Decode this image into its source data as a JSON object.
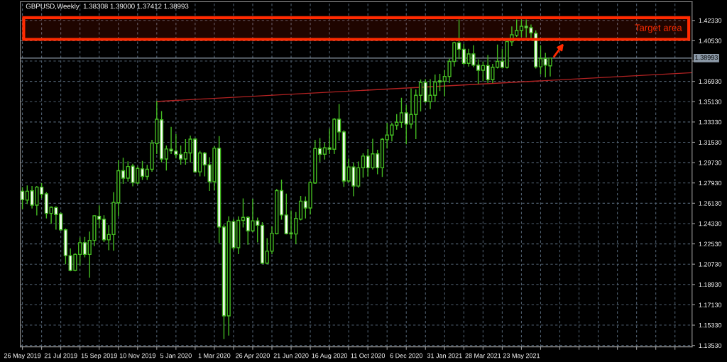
{
  "chart_data": {
    "type": "candlestick",
    "title": "GBPUSD,Weekly  1.38308 1.39000 1.37412 1.38993",
    "color": "#44bb22",
    "x": [
      "2019-05-26",
      "2019-06-02",
      "2019-06-09",
      "2019-06-16",
      "2019-06-23",
      "2019-06-30",
      "2019-07-07",
      "2019-07-14",
      "2019-07-21",
      "2019-07-28",
      "2019-08-04",
      "2019-08-11",
      "2019-08-18",
      "2019-08-25",
      "2019-09-01",
      "2019-09-08",
      "2019-09-15",
      "2019-09-22",
      "2019-09-29",
      "2019-10-06",
      "2019-10-13",
      "2019-10-20",
      "2019-10-27",
      "2019-11-03",
      "2019-11-10",
      "2019-11-17",
      "2019-11-24",
      "2019-12-01",
      "2019-12-08",
      "2019-12-15",
      "2019-12-22",
      "2019-12-29",
      "2020-01-05",
      "2020-01-12",
      "2020-01-19",
      "2020-01-26",
      "2020-02-02",
      "2020-02-09",
      "2020-02-16",
      "2020-02-23",
      "2020-03-01",
      "2020-03-08",
      "2020-03-15",
      "2020-03-22",
      "2020-03-29",
      "2020-04-05",
      "2020-04-12",
      "2020-04-19",
      "2020-04-26",
      "2020-05-03",
      "2020-05-10",
      "2020-05-17",
      "2020-05-24",
      "2020-05-31",
      "2020-06-07",
      "2020-06-14",
      "2020-06-21",
      "2020-06-28",
      "2020-07-05",
      "2020-07-12",
      "2020-07-19",
      "2020-07-26",
      "2020-08-02",
      "2020-08-09",
      "2020-08-16",
      "2020-08-23",
      "2020-08-30",
      "2020-09-06",
      "2020-09-13",
      "2020-09-20",
      "2020-09-27",
      "2020-10-04",
      "2020-10-11",
      "2020-10-18",
      "2020-10-25",
      "2020-11-01",
      "2020-11-08",
      "2020-11-15",
      "2020-11-22",
      "2020-11-29",
      "2020-12-06",
      "2020-12-13",
      "2020-12-20",
      "2020-12-27",
      "2021-01-03",
      "2021-01-10",
      "2021-01-17",
      "2021-01-24",
      "2021-01-31",
      "2021-02-07",
      "2021-02-14",
      "2021-02-21",
      "2021-02-28",
      "2021-03-07",
      "2021-03-14",
      "2021-03-21",
      "2021-03-28",
      "2021-04-04",
      "2021-04-11",
      "2021-04-18",
      "2021-04-25",
      "2021-05-02",
      "2021-05-09",
      "2021-05-16",
      "2021-05-23",
      "2021-05-30",
      "2021-06-06",
      "2021-06-13",
      "2021-06-20",
      "2021-06-27",
      "2021-07-04"
    ],
    "ohlc": [
      [
        1.272,
        1.2751,
        1.2565,
        1.2644
      ],
      [
        1.2641,
        1.2766,
        1.261,
        1.272
      ],
      [
        1.2724,
        1.2762,
        1.2571,
        1.2596
      ],
      [
        1.2596,
        1.2762,
        1.2509,
        1.2756
      ],
      [
        1.2756,
        1.2787,
        1.2662,
        1.2693
      ],
      [
        1.2697,
        1.2706,
        1.2482,
        1.2523
      ],
      [
        1.2523,
        1.2581,
        1.2436,
        1.2577
      ],
      [
        1.2575,
        1.2581,
        1.2384,
        1.2513
      ],
      [
        1.2519,
        1.2527,
        1.2374,
        1.2378
      ],
      [
        1.2378,
        1.2384,
        1.2077,
        1.2149
      ],
      [
        1.2149,
        1.2208,
        1.2014,
        1.2018
      ],
      [
        1.2018,
        1.2166,
        1.2014,
        1.216
      ],
      [
        1.216,
        1.2305,
        1.2066,
        1.2264
      ],
      [
        1.2264,
        1.2311,
        1.2139,
        1.216
      ],
      [
        1.216,
        1.2357,
        1.1958,
        1.2284
      ],
      [
        1.2284,
        1.2502,
        1.2237,
        1.2502
      ],
      [
        1.2498,
        1.259,
        1.2399,
        1.2471
      ],
      [
        1.2471,
        1.2502,
        1.2274,
        1.2289
      ],
      [
        1.2289,
        1.2415,
        1.2201,
        1.2336
      ],
      [
        1.2336,
        1.2706,
        1.2197,
        1.2621
      ],
      [
        1.2617,
        1.299,
        1.2502,
        1.2901
      ],
      [
        1.2901,
        1.3011,
        1.2789,
        1.2835
      ],
      [
        1.2835,
        1.298,
        1.281,
        1.2938
      ],
      [
        1.2942,
        1.2959,
        1.2768,
        1.2797
      ],
      [
        1.2793,
        1.2934,
        1.2787,
        1.2922
      ],
      [
        1.2918,
        1.2984,
        1.2824,
        1.2851
      ],
      [
        1.2851,
        1.2949,
        1.2824,
        1.2914
      ],
      [
        1.2914,
        1.3171,
        1.2897,
        1.3146
      ],
      [
        1.3142,
        1.3515,
        1.3053,
        1.3357
      ],
      [
        1.3353,
        1.3426,
        1.298,
        1.3005
      ],
      [
        1.3005,
        1.3121,
        1.2907,
        1.3094
      ],
      [
        1.3092,
        1.3285,
        1.3053,
        1.3077
      ],
      [
        1.3075,
        1.3223,
        1.3015,
        1.3046
      ],
      [
        1.3046,
        1.3121,
        1.2959,
        1.3005
      ],
      [
        1.3005,
        1.3177,
        1.2959,
        1.3063
      ],
      [
        1.3059,
        1.3208,
        1.298,
        1.3181
      ],
      [
        1.3181,
        1.3187,
        1.2887,
        1.2891
      ],
      [
        1.2891,
        1.3073,
        1.2856,
        1.3059
      ],
      [
        1.3057,
        1.3063,
        1.2856,
        1.2953
      ],
      [
        1.2953,
        1.3017,
        1.2727,
        1.2804
      ],
      [
        1.2804,
        1.3115,
        1.2731,
        1.31
      ],
      [
        1.31,
        1.3204,
        1.2264,
        1.2403
      ],
      [
        1.2403,
        1.242,
        1.1414,
        1.1615
      ],
      [
        1.1615,
        1.2493,
        1.1445,
        1.2451
      ],
      [
        1.2451,
        1.2472,
        1.2202,
        1.2219
      ],
      [
        1.2219,
        1.2493,
        1.2167,
        1.2461
      ],
      [
        1.2461,
        1.2652,
        1.2403,
        1.2488
      ],
      [
        1.2488,
        1.2493,
        1.225,
        1.2368
      ],
      [
        1.2368,
        1.2648,
        1.2362,
        1.2457
      ],
      [
        1.2457,
        1.2482,
        1.2271,
        1.2418
      ],
      [
        1.2418,
        1.2441,
        1.2078,
        1.2082
      ],
      [
        1.2082,
        1.23,
        1.2078,
        1.2188
      ],
      [
        1.2188,
        1.2403,
        1.2167,
        1.2347
      ],
      [
        1.2343,
        1.2735,
        1.2341,
        1.2725
      ],
      [
        1.2725,
        1.2818,
        1.2472,
        1.2509
      ],
      [
        1.2509,
        1.2694,
        1.2341,
        1.2343
      ],
      [
        1.235,
        1.2544,
        1.23,
        1.2341
      ],
      [
        1.2341,
        1.253,
        1.2254,
        1.2478
      ],
      [
        1.2472,
        1.2673,
        1.2466,
        1.2632
      ],
      [
        1.2632,
        1.2669,
        1.2482,
        1.2571
      ],
      [
        1.2571,
        1.2804,
        1.2517,
        1.2797
      ],
      [
        1.2793,
        1.3171,
        1.2789,
        1.3098
      ],
      [
        1.3098,
        1.3187,
        1.2984,
        1.3048
      ],
      [
        1.3048,
        1.3146,
        1.3005,
        1.3104
      ],
      [
        1.3104,
        1.327,
        1.3053,
        1.3092
      ],
      [
        1.3092,
        1.3364,
        1.3053,
        1.3357
      ],
      [
        1.3357,
        1.3488,
        1.3171,
        1.3245
      ],
      [
        1.3245,
        1.3256,
        1.2762,
        1.281
      ],
      [
        1.281,
        1.3005,
        1.2797,
        1.2934
      ],
      [
        1.2934,
        1.297,
        1.2679,
        1.2766
      ],
      [
        1.2765,
        1.2979,
        1.2755,
        1.2927
      ],
      [
        1.2927,
        1.3051,
        1.2844,
        1.3031
      ],
      [
        1.3031,
        1.3089,
        1.2854,
        1.2927
      ],
      [
        1.2927,
        1.318,
        1.2916,
        1.3051
      ],
      [
        1.3051,
        1.3082,
        1.2875,
        1.2927
      ],
      [
        1.2927,
        1.3186,
        1.285,
        1.318
      ],
      [
        1.3176,
        1.3321,
        1.3103,
        1.3217
      ],
      [
        1.3217,
        1.3321,
        1.3165,
        1.3306
      ],
      [
        1.3304,
        1.3398,
        1.3269,
        1.3331
      ],
      [
        1.3331,
        1.3543,
        1.3286,
        1.3414
      ],
      [
        1.3414,
        1.3481,
        1.314,
        1.3315
      ],
      [
        1.3315,
        1.3626,
        1.3279,
        1.34
      ],
      [
        1.34,
        1.3617,
        1.3186,
        1.357
      ],
      [
        1.357,
        1.3705,
        1.3431,
        1.3684
      ],
      [
        1.3684,
        1.3709,
        1.3508,
        1.3514
      ],
      [
        1.3514,
        1.3709,
        1.3452,
        1.357
      ],
      [
        1.357,
        1.375,
        1.3514,
        1.3688
      ],
      [
        1.3698,
        1.3756,
        1.3611,
        1.3688
      ],
      [
        1.3694,
        1.3788,
        1.3564,
        1.3736
      ],
      [
        1.3736,
        1.3891,
        1.3684,
        1.387
      ],
      [
        1.387,
        1.404,
        1.3829,
        1.4036
      ],
      [
        1.4034,
        1.4237,
        1.3895,
        1.3978
      ],
      [
        1.3978,
        1.4019,
        1.3843,
        1.3853
      ],
      [
        1.3853,
        1.3978,
        1.3829,
        1.3936
      ],
      [
        1.3936,
        1.4009,
        1.3822,
        1.3837
      ],
      [
        1.3837,
        1.3885,
        1.3677,
        1.3791
      ],
      [
        1.3791,
        1.3864,
        1.3698,
        1.3833
      ],
      [
        1.3833,
        1.3922,
        1.3683,
        1.3708
      ],
      [
        1.3708,
        1.3843,
        1.3683,
        1.3818
      ],
      [
        1.3818,
        1.4015,
        1.3812,
        1.387
      ],
      [
        1.387,
        1.3978,
        1.3812,
        1.3818
      ],
      [
        1.3818,
        1.405,
        1.3812,
        1.4046
      ],
      [
        1.4044,
        1.4175,
        1.4009,
        1.4106
      ],
      [
        1.4102,
        1.4237,
        1.4092,
        1.4144
      ],
      [
        1.4144,
        1.4237,
        1.4092,
        1.4181
      ],
      [
        1.4181,
        1.4237,
        1.4086,
        1.4169
      ],
      [
        1.4169,
        1.4192,
        1.4077,
        1.4123
      ],
      [
        1.4119,
        1.414,
        1.3812,
        1.3822
      ],
      [
        1.3822,
        1.4009,
        1.376,
        1.3895
      ],
      [
        1.3895,
        1.3941,
        1.3733,
        1.3837
      ],
      [
        1.38308,
        1.39,
        1.37412,
        1.38993
      ]
    ],
    "series": [
      {
        "type": "line",
        "x": [
          "2019-12-08",
          "2022-01-27"
        ],
        "values": [
          1.3515,
          1.377
        ],
        "color": "#b22222"
      }
    ],
    "ref_lines": [
      {
        "axis": "y",
        "value": 1.38993,
        "label": "1.38993",
        "color": "#8c9aa8"
      }
    ],
    "bands": [
      {
        "axis": "y",
        "from": 1.4065,
        "to": 1.4258,
        "label": "Target area",
        "color": "#ff2a00"
      }
    ],
    "xlim": [
      "2019-05-23",
      "2022-01-27"
    ],
    "xticks": [
      {
        "value": "2019-05-26",
        "label": "26 May 2019"
      },
      {
        "value": "2019-06-23",
        "label": null
      },
      {
        "value": "2019-07-21",
        "label": "21 Jul 2019"
      },
      {
        "value": "2019-08-18",
        "label": null
      },
      {
        "value": "2019-09-15",
        "label": "15 Sep 2019"
      },
      {
        "value": "2019-10-13",
        "label": null
      },
      {
        "value": "2019-11-10",
        "label": "10 Nov 2019"
      },
      {
        "value": "2019-12-08",
        "label": null
      },
      {
        "value": "2020-01-05",
        "label": "5 Jan 2020"
      },
      {
        "value": "2020-02-02",
        "label": null
      },
      {
        "value": "2020-03-01",
        "label": "1 Mar 2020"
      },
      {
        "value": "2020-03-29",
        "label": null
      },
      {
        "value": "2020-04-26",
        "label": "26 Apr 2020"
      },
      {
        "value": "2020-05-24",
        "label": null
      },
      {
        "value": "2020-06-21",
        "label": "21 Jun 2020"
      },
      {
        "value": "2020-07-19",
        "label": null
      },
      {
        "value": "2020-08-16",
        "label": "16 Aug 2020"
      },
      {
        "value": "2020-09-13",
        "label": null
      },
      {
        "value": "2020-10-11",
        "label": "11 Oct 2020"
      },
      {
        "value": "2020-11-08",
        "label": null
      },
      {
        "value": "2020-12-06",
        "label": "6 Dec 2020"
      },
      {
        "value": "2021-01-03",
        "label": null
      },
      {
        "value": "2021-01-31",
        "label": "31 Jan 2021"
      },
      {
        "value": "2021-02-28",
        "label": null
      },
      {
        "value": "2021-03-28",
        "label": "28 Mar 2021"
      },
      {
        "value": "2021-04-25",
        "label": null
      },
      {
        "value": "2021-05-23",
        "label": "23 May 2021"
      },
      {
        "value": "2021-06-20",
        "label": null
      },
      {
        "value": "2021-07-18",
        "label": null
      },
      {
        "value": "2021-08-15",
        "label": null
      },
      {
        "value": "2021-09-12",
        "label": null
      },
      {
        "value": "2021-10-10",
        "label": null
      },
      {
        "value": "2021-11-07",
        "label": null
      },
      {
        "value": "2021-12-05",
        "label": null
      },
      {
        "value": "2022-01-02",
        "label": null
      }
    ],
    "ylim": [
      1.1341,
      1.4398
    ],
    "yticks": [
      {
        "value": 1.4233,
        "label": "1.42330"
      },
      {
        "value": 1.4053,
        "label": "1.40530"
      },
      {
        "value": 1.3873,
        "label": null
      },
      {
        "value": 1.3693,
        "label": "1.36930"
      },
      {
        "value": 1.3513,
        "label": "1.35130"
      },
      {
        "value": 1.3333,
        "label": "1.33330"
      },
      {
        "value": 1.3153,
        "label": "1.31530"
      },
      {
        "value": 1.2973,
        "label": "1.29730"
      },
      {
        "value": 1.2793,
        "label": "1.27930"
      },
      {
        "value": 1.2613,
        "label": "1.26130"
      },
      {
        "value": 1.2433,
        "label": "1.24330"
      },
      {
        "value": 1.2253,
        "label": "1.22530"
      },
      {
        "value": 1.2073,
        "label": "1.20730"
      },
      {
        "value": 1.1893,
        "label": "1.18930"
      },
      {
        "value": 1.1713,
        "label": "1.17130"
      },
      {
        "value": 1.1533,
        "label": "1.15330"
      },
      {
        "value": 1.1353,
        "label": "1.13530"
      }
    ],
    "grid": true
  }
}
